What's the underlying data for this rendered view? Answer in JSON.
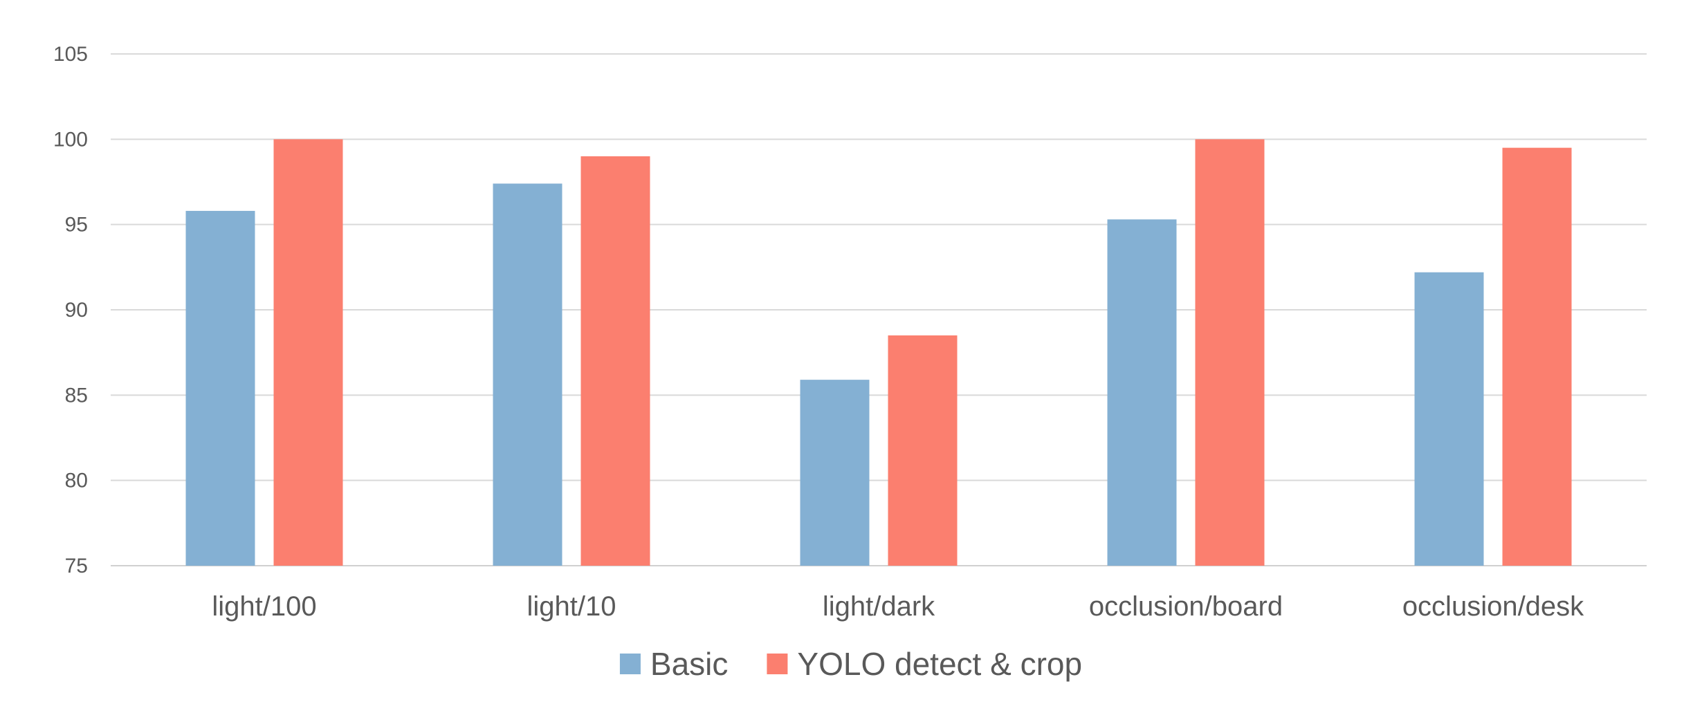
{
  "chart_data": {
    "type": "bar",
    "title": "",
    "xlabel": "",
    "ylabel": "",
    "categories": [
      "light/100",
      "light/10",
      "light/dark",
      "occlusion/board",
      "occlusion/desk"
    ],
    "series": [
      {
        "name": "Basic",
        "color": "#84b0d3",
        "values": [
          95.8,
          97.4,
          85.9,
          95.3,
          92.2
        ]
      },
      {
        "name": "YOLO detect & crop",
        "color": "#fb7f6f",
        "values": [
          100,
          99,
          88.5,
          100,
          99.5
        ]
      }
    ],
    "ylim": [
      75,
      105
    ],
    "yticks": [
      75,
      80,
      85,
      90,
      95,
      100,
      105
    ],
    "grid": true,
    "legend_position": "bottom"
  }
}
